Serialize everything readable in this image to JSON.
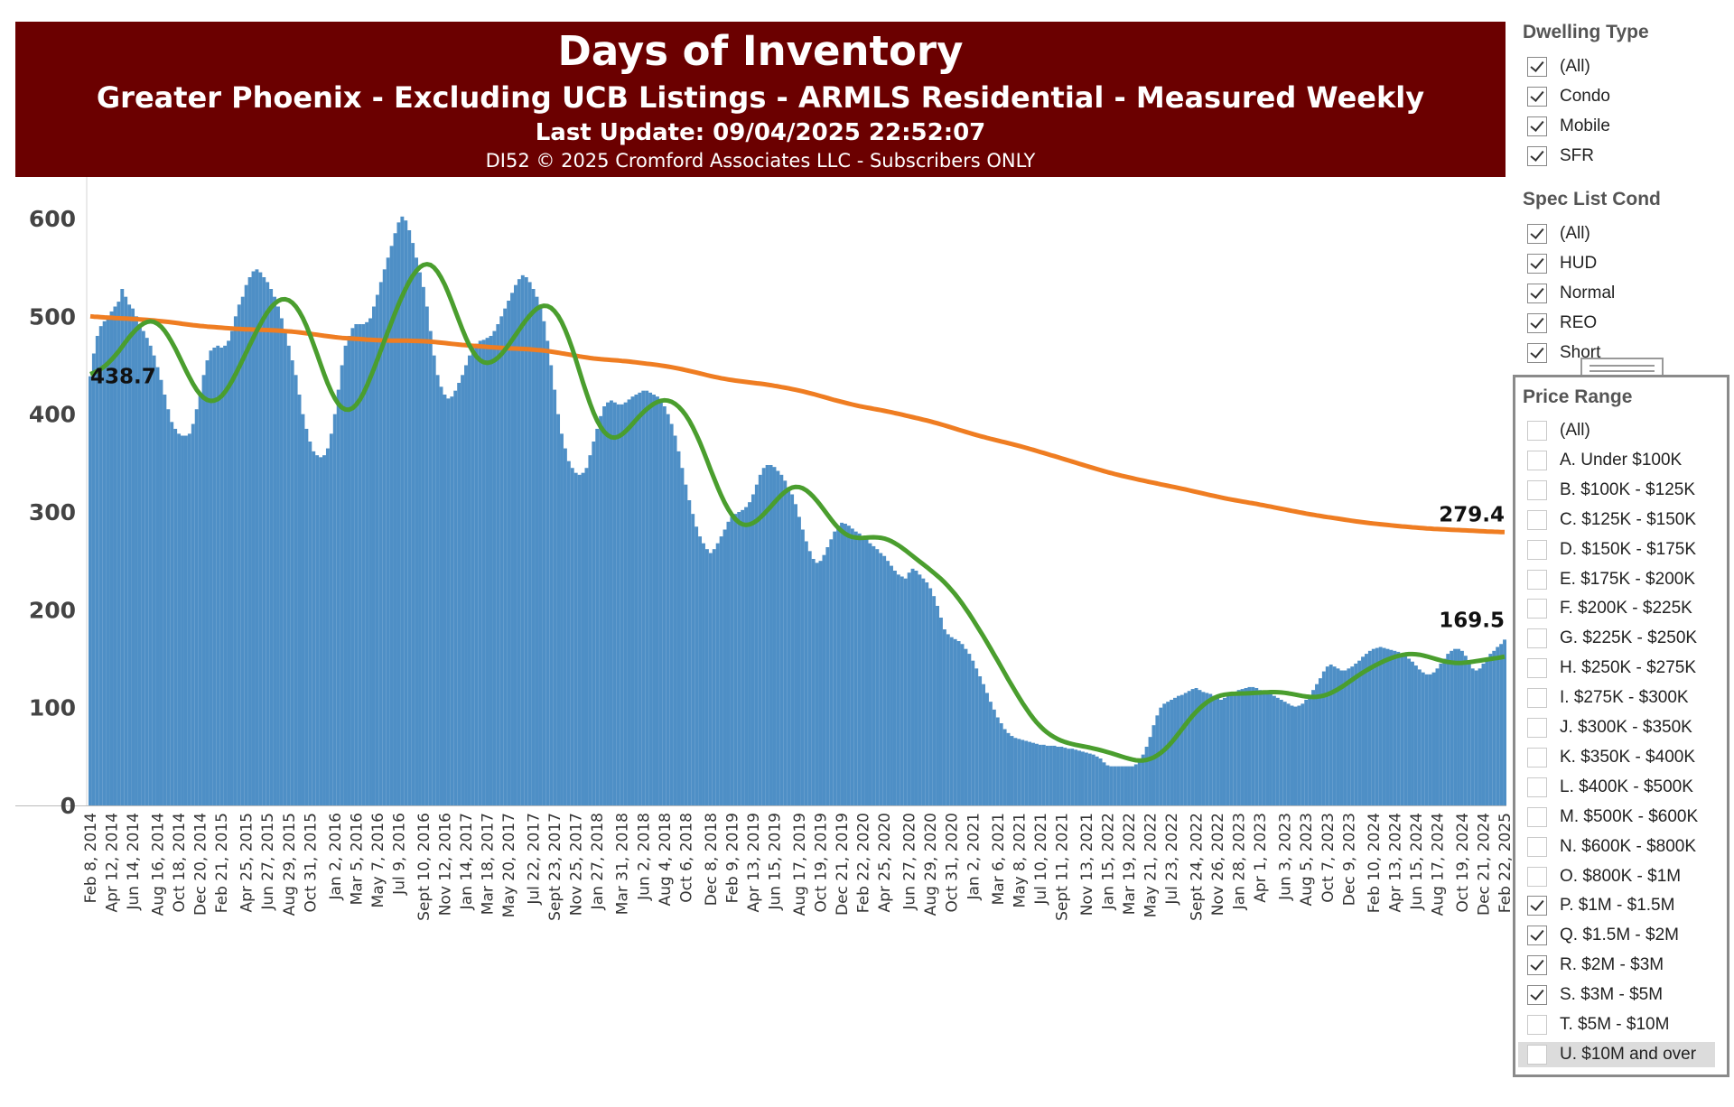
{
  "header": {
    "title": "Days of Inventory",
    "subtitle": "Greater Phoenix - Excluding UCB Listings - ARMLS Residential - Measured Weekly",
    "updated": "Last Update: 09/04/2025 22:52:07",
    "copyright": "DI52 © 2025 Cromford Associates LLC - Subscribers ONLY"
  },
  "filters": {
    "dwelling_type": {
      "title": "Dwelling Type",
      "items": [
        {
          "label": "(All)",
          "checked": true
        },
        {
          "label": "Condo",
          "checked": true
        },
        {
          "label": "Mobile",
          "checked": true
        },
        {
          "label": "SFR",
          "checked": true
        }
      ]
    },
    "spec_list_cond": {
      "title": "Spec List Cond",
      "items": [
        {
          "label": "(All)",
          "checked": true
        },
        {
          "label": "HUD",
          "checked": true
        },
        {
          "label": "Normal",
          "checked": true
        },
        {
          "label": "REO",
          "checked": true
        },
        {
          "label": "Short",
          "checked": true
        }
      ]
    },
    "price_range": {
      "title": "Price Range",
      "items": [
        {
          "label": "(All)",
          "checked": false
        },
        {
          "label": "A. Under $100K",
          "checked": false
        },
        {
          "label": "B. $100K - $125K",
          "checked": false
        },
        {
          "label": "C. $125K - $150K",
          "checked": false
        },
        {
          "label": "D. $150K - $175K",
          "checked": false
        },
        {
          "label": "E. $175K - $200K",
          "checked": false
        },
        {
          "label": "F. $200K - $225K",
          "checked": false
        },
        {
          "label": "G. $225K - $250K",
          "checked": false
        },
        {
          "label": "H. $250K - $275K",
          "checked": false
        },
        {
          "label": "I. $275K - $300K",
          "checked": false
        },
        {
          "label": "J. $300K - $350K",
          "checked": false
        },
        {
          "label": "K. $350K - $400K",
          "checked": false
        },
        {
          "label": "L. $400K - $500K",
          "checked": false
        },
        {
          "label": "M. $500K - $600K",
          "checked": false
        },
        {
          "label": "N. $600K - $800K",
          "checked": false
        },
        {
          "label": "O. $800K - $1M",
          "checked": false
        },
        {
          "label": "P. $1M - $1.5M",
          "checked": true
        },
        {
          "label": "Q. $1.5M - $2M",
          "checked": true
        },
        {
          "label": "R. $2M - $3M",
          "checked": true
        },
        {
          "label": "S. $3M - $5M",
          "checked": true
        },
        {
          "label": "T. $5M - $10M",
          "checked": false
        },
        {
          "label": "U. $10M and over",
          "checked": false,
          "highlighted": true
        }
      ]
    }
  },
  "chart_data": {
    "type": "bar",
    "ylim": [
      0,
      620
    ],
    "yticks": [
      0,
      100,
      200,
      300,
      400,
      500,
      600
    ],
    "grid": false,
    "x_ticks": [
      "Feb 8, 2014",
      "Apr 12, 2014",
      "Jun 14, 2014",
      "Aug 16, 2014",
      "Oct 18, 2014",
      "Dec 20, 2014",
      "Feb 21, 2015",
      "Apr 25, 2015",
      "Jun 27, 2015",
      "Aug 29, 2015",
      "Oct 31, 2015",
      "Jan 2, 2016",
      "Mar 5, 2016",
      "May 7, 2016",
      "Jul 9, 2016",
      "Sept 10, 2016",
      "Nov 12, 2016",
      "Jan 14, 2017",
      "Mar 18, 2017",
      "May 20, 2017",
      "Jul 22, 2017",
      "Sept 23, 2017",
      "Nov 25, 2017",
      "Jan 27, 2018",
      "Mar 31, 2018",
      "Jun 2, 2018",
      "Aug 4, 2018",
      "Oct 6, 2018",
      "Dec 8, 2018",
      "Feb 9, 2019",
      "Apr 13, 2019",
      "Jun 15, 2019",
      "Aug 17, 2019",
      "Oct 19, 2019",
      "Dec 21, 2019",
      "Feb 22, 2020",
      "Apr 25, 2020",
      "Jun 27, 2020",
      "Aug 29, 2020",
      "Oct 31, 2020",
      "Jan 2, 2021",
      "Mar 6, 2021",
      "May 8, 2021",
      "Jul 10, 2021",
      "Sept 11, 2021",
      "Nov 13, 2021",
      "Jan 15, 2022",
      "Mar 19, 2022",
      "May 21, 2022",
      "Jul 23, 2022",
      "Sept 24, 2022",
      "Nov 26, 2022",
      "Jan 28, 2023",
      "Apr 1, 2023",
      "Jun 3, 2023",
      "Aug 5, 2023",
      "Oct 7, 2023",
      "Dec 9, 2023",
      "Feb 10, 2024",
      "Apr 13, 2024",
      "Jun 15, 2024",
      "Aug 17, 2024",
      "Oct 19, 2024",
      "Dec 21, 2024",
      "Feb 22, 2025"
    ],
    "series": [
      {
        "type": "bar",
        "color": "#4e8fc6",
        "values": [
          438.7,
          462,
          480,
          490,
          495,
          498,
          505,
          510,
          515,
          528,
          520,
          512,
          508,
          500,
          492,
          485,
          478,
          470,
          460,
          448,
          435,
          420,
          405,
          392,
          385,
          380,
          378,
          378,
          380,
          390,
          405,
          420,
          440,
          455,
          465,
          468,
          470,
          468,
          470,
          475,
          485,
          500,
          512,
          520,
          532,
          540,
          546,
          548,
          545,
          540,
          535,
          528,
          520,
          510,
          498,
          485,
          470,
          455,
          440,
          420,
          400,
          385,
          372,
          362,
          358,
          356,
          358,
          365,
          380,
          400,
          425,
          450,
          470,
          480,
          488,
          492,
          492,
          492,
          494,
          498,
          510,
          522,
          535,
          548,
          560,
          572,
          585,
          596,
          602,
          598,
          588,
          575,
          560,
          545,
          530,
          510,
          485,
          460,
          440,
          428,
          420,
          416,
          418,
          424,
          432,
          440,
          450,
          460,
          468,
          472,
          475,
          476,
          478,
          480,
          485,
          492,
          500,
          508,
          516,
          524,
          532,
          538,
          542,
          540,
          535,
          528,
          520,
          510,
          495,
          475,
          450,
          425,
          400,
          380,
          365,
          352,
          345,
          340,
          338,
          340,
          345,
          358,
          372,
          385,
          398,
          408,
          412,
          414,
          412,
          410,
          410,
          412,
          415,
          418,
          420,
          422,
          424,
          424,
          422,
          420,
          418,
          414,
          408,
          400,
          390,
          378,
          362,
          345,
          328,
          312,
          298,
          285,
          275,
          268,
          262,
          258,
          262,
          268,
          275,
          282,
          290,
          295,
          298,
          300,
          302,
          305,
          310,
          318,
          328,
          338,
          345,
          348,
          348,
          346,
          342,
          338,
          332,
          325,
          318,
          308,
          295,
          282,
          270,
          260,
          252,
          248,
          250,
          256,
          264,
          272,
          280,
          286,
          289,
          288,
          286,
          283,
          280,
          278,
          275,
          272,
          268,
          265,
          262,
          258,
          255,
          250,
          245,
          240,
          236,
          234,
          232,
          238,
          242,
          240,
          236,
          232,
          228,
          222,
          214,
          204,
          192,
          180,
          175,
          172,
          170,
          168,
          165,
          160,
          155,
          148,
          140,
          132,
          124,
          115,
          106,
          98,
          90,
          84,
          78,
          74,
          71,
          69,
          68,
          67,
          66,
          65,
          64,
          63,
          62,
          62,
          61,
          61,
          61,
          60,
          60,
          59,
          58,
          58,
          57,
          56,
          55,
          54,
          53,
          52,
          50,
          48,
          44,
          41,
          40,
          40,
          40,
          40,
          40,
          40,
          40,
          42,
          46,
          52,
          60,
          70,
          82,
          92,
          100,
          104,
          106,
          108,
          110,
          112,
          113,
          115,
          117,
          119,
          120,
          118,
          116,
          115,
          114,
          112,
          110,
          108,
          110,
          112,
          114,
          116,
          118,
          119,
          120,
          121,
          121,
          120,
          118,
          116,
          115,
          114,
          112,
          110,
          108,
          106,
          104,
          102,
          101,
          102,
          104,
          108,
          113,
          118,
          124,
          130,
          137,
          142,
          144,
          142,
          140,
          138,
          138,
          140,
          142,
          145,
          148,
          152,
          155,
          158,
          160,
          161,
          162,
          161,
          160,
          159,
          158,
          157,
          155,
          153,
          150,
          147,
          143,
          139,
          136,
          134,
          134,
          136,
          140,
          145,
          150,
          155,
          158,
          160,
          160,
          158,
          153,
          146,
          140,
          138,
          140,
          145,
          150,
          155,
          158,
          162,
          165,
          169.5
        ]
      },
      {
        "type": "line",
        "color": "#4a9e2e",
        "values": "moving_average"
      },
      {
        "type": "line",
        "color": "#ef7d22",
        "values": "long_trend"
      }
    ],
    "data_labels": [
      {
        "text": "438.7",
        "value": 438.7,
        "series": "bar",
        "at": "first"
      },
      {
        "text": "279.4",
        "value": 279.4,
        "series": "orange",
        "at": "last"
      },
      {
        "text": "169.5",
        "value": 169.5,
        "series": "bar",
        "at": "last"
      }
    ]
  }
}
